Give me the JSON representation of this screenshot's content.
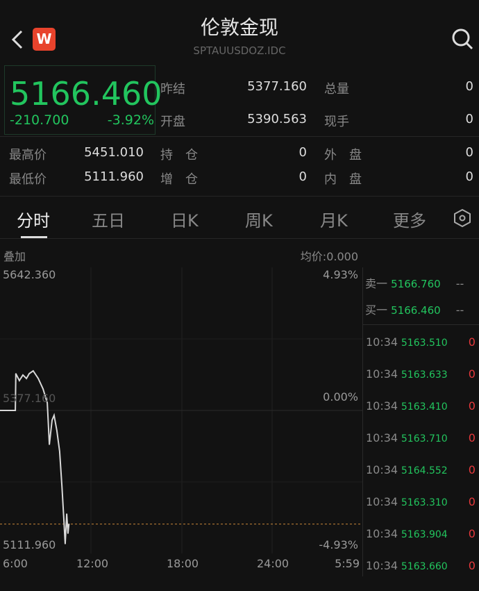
{
  "header": {
    "title": "伦敦金现",
    "code": "SPTAUUSDOZ.IDC",
    "logo": "W",
    "back_icon": "chevron-left",
    "search_icon": "search"
  },
  "quote": {
    "price": "5166.460",
    "change": "-210.700",
    "change_pct": "-3.92%"
  },
  "stats": [
    {
      "label": "昨结",
      "value": "5377.160"
    },
    {
      "label": "总量",
      "value": "0"
    },
    {
      "label": "开盘",
      "value": "5390.563"
    },
    {
      "label": "现手",
      "value": "0"
    },
    {
      "label": "最高价",
      "value": "5451.010"
    },
    {
      "label": "持　仓",
      "value": "0"
    },
    {
      "label": "外　盘",
      "value": "0"
    },
    {
      "label": "最低价",
      "value": "5111.960"
    },
    {
      "label": "增　仓",
      "value": "0"
    },
    {
      "label": "内　盘",
      "value": "0"
    }
  ],
  "tabs": [
    {
      "label": "分时",
      "active": true
    },
    {
      "label": "五日"
    },
    {
      "label": "日K"
    },
    {
      "label": "周K"
    },
    {
      "label": "月K"
    },
    {
      "label": "更多"
    }
  ],
  "chart_bar": {
    "overlay": "叠加",
    "avg": "均价:0.000"
  },
  "colors": {
    "up": "#e5383b",
    "down": "#22c55e",
    "line": "#d9d9d9",
    "current": "#c8873a"
  },
  "chart_data": {
    "type": "line",
    "y_labels": {
      "top": "5642.360",
      "mid": "5377.160",
      "bottom": "5111.960",
      "top_pct": "4.93%",
      "mid_pct": "0.00%",
      "bottom_pct": "-4.93%"
    },
    "ylim": [
      5111.96,
      5642.36
    ],
    "prev_close": 5377.16,
    "current": 5166.46,
    "x_ticks": [
      "6:00",
      "12:00",
      "18:00",
      "24:00",
      "5:59"
    ],
    "x": [
      "6:00",
      "7:01",
      "7:03",
      "7:17",
      "7:31",
      "7:45",
      "7:56",
      "8:12",
      "8:32",
      "8:51",
      "9:08",
      "9:16",
      "9:27",
      "9:35",
      "9:46",
      "9:57",
      "10:06",
      "10:14",
      "10:19",
      "10:25",
      "10:30",
      "10:34"
    ],
    "values": [
      5377.16,
      5377.16,
      5445.4,
      5432.5,
      5442.8,
      5436.4,
      5445.4,
      5450.5,
      5436.4,
      5417.1,
      5391.3,
      5314.1,
      5359.1,
      5368.1,
      5339.8,
      5301.2,
      5236.8,
      5172.5,
      5130.0,
      5185.3,
      5149.3,
      5166.46
    ]
  },
  "orderbook": [
    {
      "label": "卖一",
      "price": "5166.760",
      "vol": "--"
    },
    {
      "label": "买一",
      "price": "5166.460",
      "vol": "--"
    }
  ],
  "trades": [
    {
      "time": "10:34",
      "price": "5163.510",
      "vol": "0"
    },
    {
      "time": "10:34",
      "price": "5163.633",
      "vol": "0"
    },
    {
      "time": "10:34",
      "price": "5163.410",
      "vol": "0"
    },
    {
      "time": "10:34",
      "price": "5163.710",
      "vol": "0"
    },
    {
      "time": "10:34",
      "price": "5164.552",
      "vol": "0"
    },
    {
      "time": "10:34",
      "price": "5163.310",
      "vol": "0"
    },
    {
      "time": "10:34",
      "price": "5163.904",
      "vol": "0"
    },
    {
      "time": "10:34",
      "price": "5163.660",
      "vol": "0"
    }
  ]
}
